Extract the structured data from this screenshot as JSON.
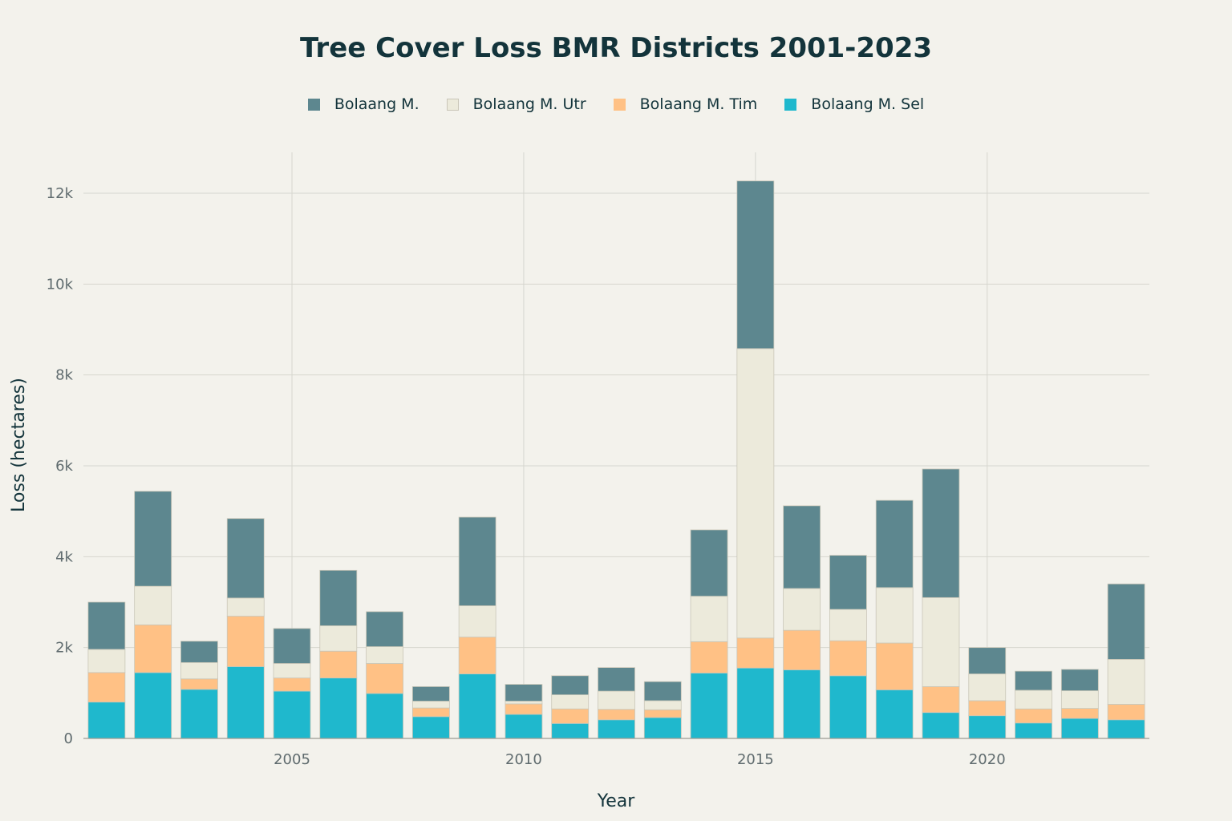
{
  "chart_data": {
    "type": "bar",
    "stacked": true,
    "title": "Tree Cover Loss BMR Districts 2001-2023",
    "xlabel": "Year",
    "ylabel": "Loss (hectares)",
    "x": [
      2001,
      2002,
      2003,
      2004,
      2005,
      2006,
      2007,
      2008,
      2009,
      2010,
      2011,
      2012,
      2013,
      2014,
      2015,
      2016,
      2017,
      2018,
      2019,
      2020,
      2021,
      2022,
      2023
    ],
    "xlim": [
      2000.5,
      2023.5
    ],
    "ylim": [
      0,
      12900
    ],
    "x_ticks": [
      {
        "value": 2005,
        "label": "2005"
      },
      {
        "value": 2010,
        "label": "2010"
      },
      {
        "value": 2015,
        "label": "2015"
      },
      {
        "value": 2020,
        "label": "2020"
      }
    ],
    "y_ticks": [
      {
        "value": 0,
        "label": "0"
      },
      {
        "value": 2000,
        "label": "2k"
      },
      {
        "value": 4000,
        "label": "4k"
      },
      {
        "value": 6000,
        "label": "6k"
      },
      {
        "value": 8000,
        "label": "8k"
      },
      {
        "value": 10000,
        "label": "10k"
      },
      {
        "value": 12000,
        "label": "12k"
      }
    ],
    "grid": true,
    "legend_position": "top-center",
    "legend_order": [
      "Bolaang M.",
      "Bolaang M. Utr",
      "Bolaang M. Tim",
      "Bolaang M. Sel"
    ],
    "series": [
      {
        "name": "Bolaang M. Sel",
        "color": "#1fb8cd",
        "values": [
          800,
          1450,
          1080,
          1580,
          1040,
          1330,
          990,
          480,
          1420,
          530,
          330,
          410,
          460,
          1440,
          1550,
          1510,
          1380,
          1070,
          570,
          500,
          340,
          440,
          410
        ]
      },
      {
        "name": "Bolaang M. Tim",
        "color": "#ffc185",
        "values": [
          650,
          1050,
          230,
          1110,
          290,
          590,
          660,
          190,
          810,
          230,
          320,
          230,
          170,
          690,
          660,
          870,
          770,
          1030,
          570,
          330,
          310,
          220,
          340
        ]
      },
      {
        "name": "Bolaang M. Utr",
        "color": "#eceadb",
        "values": [
          510,
          850,
          360,
          400,
          320,
          560,
          370,
          150,
          690,
          60,
          310,
          400,
          200,
          1000,
          6370,
          920,
          690,
          1220,
          1960,
          590,
          410,
          390,
          990
        ]
      },
      {
        "name": "Bolaang M.",
        "color": "#5d878f",
        "values": [
          1040,
          2090,
          470,
          1750,
          770,
          1220,
          770,
          320,
          1950,
          370,
          420,
          520,
          420,
          1460,
          3690,
          1820,
          1190,
          1920,
          2830,
          580,
          420,
          470,
          1660
        ]
      }
    ]
  }
}
